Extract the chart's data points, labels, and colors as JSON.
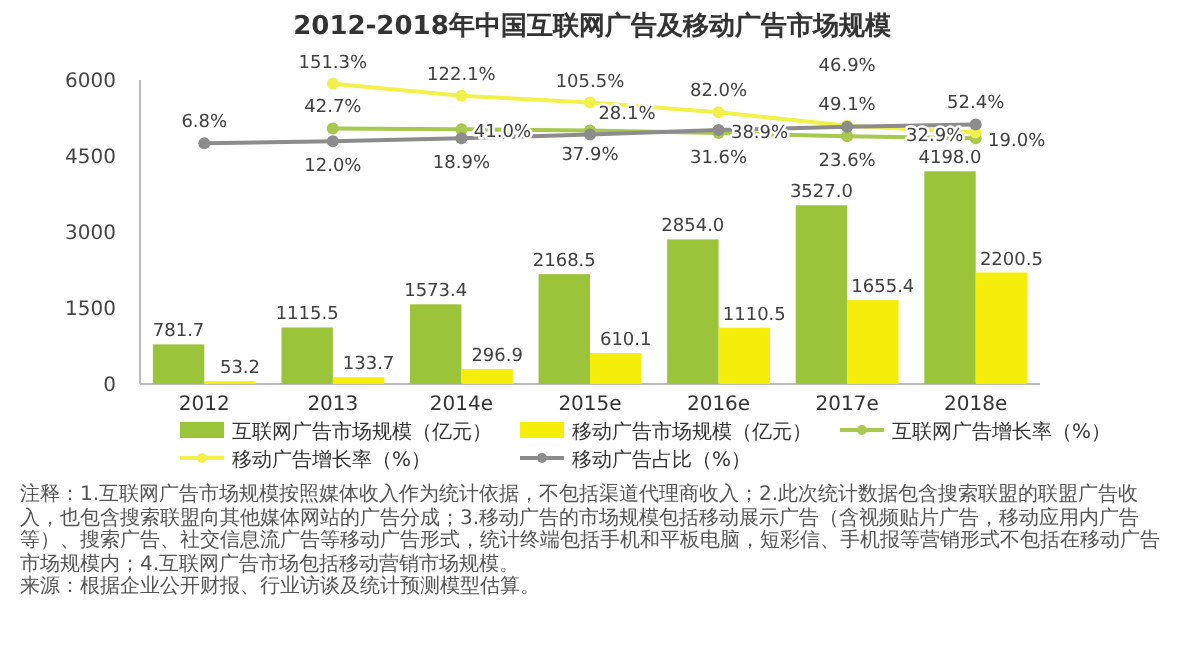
{
  "chart_data": {
    "type": "bar",
    "title": "2012-2018年中国互联网广告及移动广告市场规模",
    "categories": [
      "2012",
      "2013",
      "2014e",
      "2015e",
      "2016e",
      "2017e",
      "2018e"
    ],
    "ylim": [
      0,
      6000
    ],
    "yticks": [
      0,
      1500,
      3000,
      4500,
      6000
    ],
    "grid": false,
    "legend": "bottom",
    "marker": "circle",
    "series": [
      {
        "name": "互联网广告市场规模（亿元）",
        "color": "#9cc43a",
        "values": [
          781.7,
          1115.5,
          1573.4,
          2168.5,
          2854.0,
          3527.0,
          4198.0
        ],
        "value_labels": [
          "781.7",
          "1115.5",
          "1573.4",
          "2168.5",
          "2854.0",
          "3527.0",
          "4198.0"
        ]
      },
      {
        "name": "移动广告市场规模（亿元）",
        "color": "#f5ee0a",
        "values": [
          53.2,
          133.7,
          296.9,
          610.1,
          1110.5,
          1655.4,
          2200.5
        ],
        "value_labels": [
          "53.2",
          "133.7",
          "296.9",
          "610.1",
          "1110.5",
          "1655.4",
          "2200.5"
        ]
      },
      {
        "name": "互联网广告增长率（%）",
        "type": "line",
        "axis": "y2",
        "color": "#a8c850",
        "values": [
          null,
          42.7,
          41.0,
          37.9,
          31.6,
          23.6,
          19.0
        ],
        "value_labels": [
          null,
          "42.7%",
          "41.0%",
          "37.9%",
          "31.6%",
          "23.6%",
          "19.0%"
        ]
      },
      {
        "name": "移动广告增长率（%）",
        "type": "line",
        "axis": "y2",
        "color": "#f2f04a",
        "values": [
          null,
          151.3,
          122.1,
          105.5,
          82.0,
          49.1,
          32.9
        ],
        "value_labels": [
          null,
          "151.3%",
          "122.1%",
          "105.5%",
          "82.0%",
          "49.1%",
          "32.9%"
        ]
      },
      {
        "name": "移动广告占比（%）",
        "type": "line",
        "axis": "y2",
        "color": "#8c8c8c",
        "values": [
          6.8,
          12.0,
          18.9,
          28.1,
          38.9,
          46.9,
          52.4
        ],
        "value_labels": [
          "6.8%",
          "12.0%",
          "18.9%",
          "28.1%",
          "38.9%",
          "46.9%",
          "52.4%"
        ]
      }
    ],
    "annotations": [
      "注释：1.互联网广告市场规模按照媒体收入作为统计依据，不包括渠道代理商收入；2.此次统计数据包含搜索联盟的联盟广告收入，也包含搜索联盟向其他媒体网站的广告分成；3.移动广告的市场规模包括移动展示广告（含视频贴片广告，移动应用内广告等）、搜索广告、社交信息流广告等移动广告形式，统计终端包括手机和平板电脑，短彩信、手机报等营销形式不包括在移动广告市场规模内；4.互联网广告市场包括移动营销市场规模。",
      "来源：根据企业公开财报、行业访谈及统计预测模型估算。"
    ]
  }
}
